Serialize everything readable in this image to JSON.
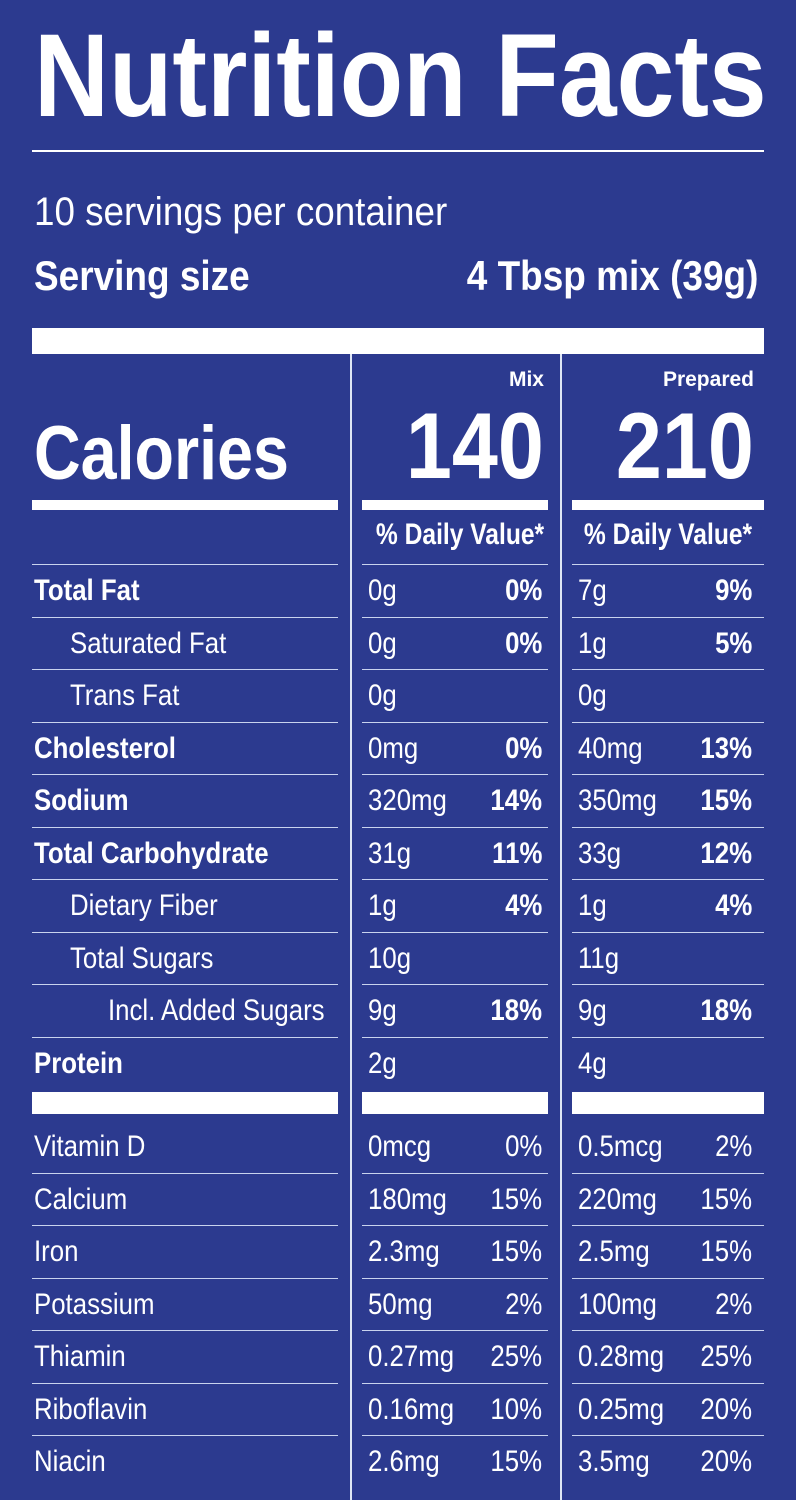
{
  "title": "Nutrition Facts",
  "servings_per_container": "10 servings per container",
  "serving_size_label": "Serving size",
  "serving_size_value": "4 Tbsp mix (39g)",
  "columns": {
    "mix": "Mix",
    "prepared": "Prepared"
  },
  "calories": {
    "label": "Calories",
    "mix": "140",
    "prepared": "210"
  },
  "daily_value_header": "% Daily Value*",
  "nutrients": [
    {
      "name": "Total Fat",
      "bold": true,
      "indent": 0,
      "mix_amount": "0g",
      "mix_dv": "0%",
      "prep_amount": "7g",
      "prep_dv": "9%"
    },
    {
      "name": "Saturated Fat",
      "bold": false,
      "indent": 1,
      "mix_amount": "0g",
      "mix_dv": "0%",
      "prep_amount": "1g",
      "prep_dv": "5%"
    },
    {
      "name": "Trans Fat",
      "bold": false,
      "indent": 1,
      "mix_amount": "0g",
      "mix_dv": "",
      "prep_amount": "0g",
      "prep_dv": ""
    },
    {
      "name": "Cholesterol",
      "bold": true,
      "indent": 0,
      "mix_amount": "0mg",
      "mix_dv": "0%",
      "prep_amount": "40mg",
      "prep_dv": "13%"
    },
    {
      "name": "Sodium",
      "bold": true,
      "indent": 0,
      "mix_amount": "320mg",
      "mix_dv": "14%",
      "prep_amount": "350mg",
      "prep_dv": "15%"
    },
    {
      "name": "Total Carbohydrate",
      "bold": true,
      "indent": 0,
      "mix_amount": "31g",
      "mix_dv": "11%",
      "prep_amount": "33g",
      "prep_dv": "12%"
    },
    {
      "name": "Dietary Fiber",
      "bold": false,
      "indent": 1,
      "mix_amount": "1g",
      "mix_dv": "4%",
      "prep_amount": "1g",
      "prep_dv": "4%"
    },
    {
      "name": "Total Sugars",
      "bold": false,
      "indent": 1,
      "mix_amount": "10g",
      "mix_dv": "",
      "prep_amount": "11g",
      "prep_dv": ""
    },
    {
      "name": "Incl. Added Sugars",
      "bold": false,
      "indent": 2,
      "mix_amount": "9g",
      "mix_dv": "18%",
      "prep_amount": "9g",
      "prep_dv": "18%"
    },
    {
      "name": "Protein",
      "bold": true,
      "indent": 0,
      "mix_amount": "2g",
      "mix_dv": "",
      "prep_amount": "4g",
      "prep_dv": ""
    }
  ],
  "vitamins": [
    {
      "name": "Vitamin D",
      "mix_amount": "0mcg",
      "mix_dv": "0%",
      "prep_amount": "0.5mcg",
      "prep_dv": "2%"
    },
    {
      "name": "Calcium",
      "mix_amount": "180mg",
      "mix_dv": "15%",
      "prep_amount": "220mg",
      "prep_dv": "15%"
    },
    {
      "name": "Iron",
      "mix_amount": "2.3mg",
      "mix_dv": "15%",
      "prep_amount": "2.5mg",
      "prep_dv": "15%"
    },
    {
      "name": "Potassium",
      "mix_amount": "50mg",
      "mix_dv": "2%",
      "prep_amount": "100mg",
      "prep_dv": "2%"
    },
    {
      "name": "Thiamin",
      "mix_amount": "0.27mg",
      "mix_dv": "25%",
      "prep_amount": "0.28mg",
      "prep_dv": "25%"
    },
    {
      "name": "Riboflavin",
      "mix_amount": "0.16mg",
      "mix_dv": "10%",
      "prep_amount": "0.25mg",
      "prep_dv": "20%"
    },
    {
      "name": "Niacin",
      "mix_amount": "2.6mg",
      "mix_dv": "15%",
      "prep_amount": "3.5mg",
      "prep_dv": "20%"
    }
  ],
  "colors": {
    "background": "#2c3a8f",
    "text": "#ffffff"
  }
}
